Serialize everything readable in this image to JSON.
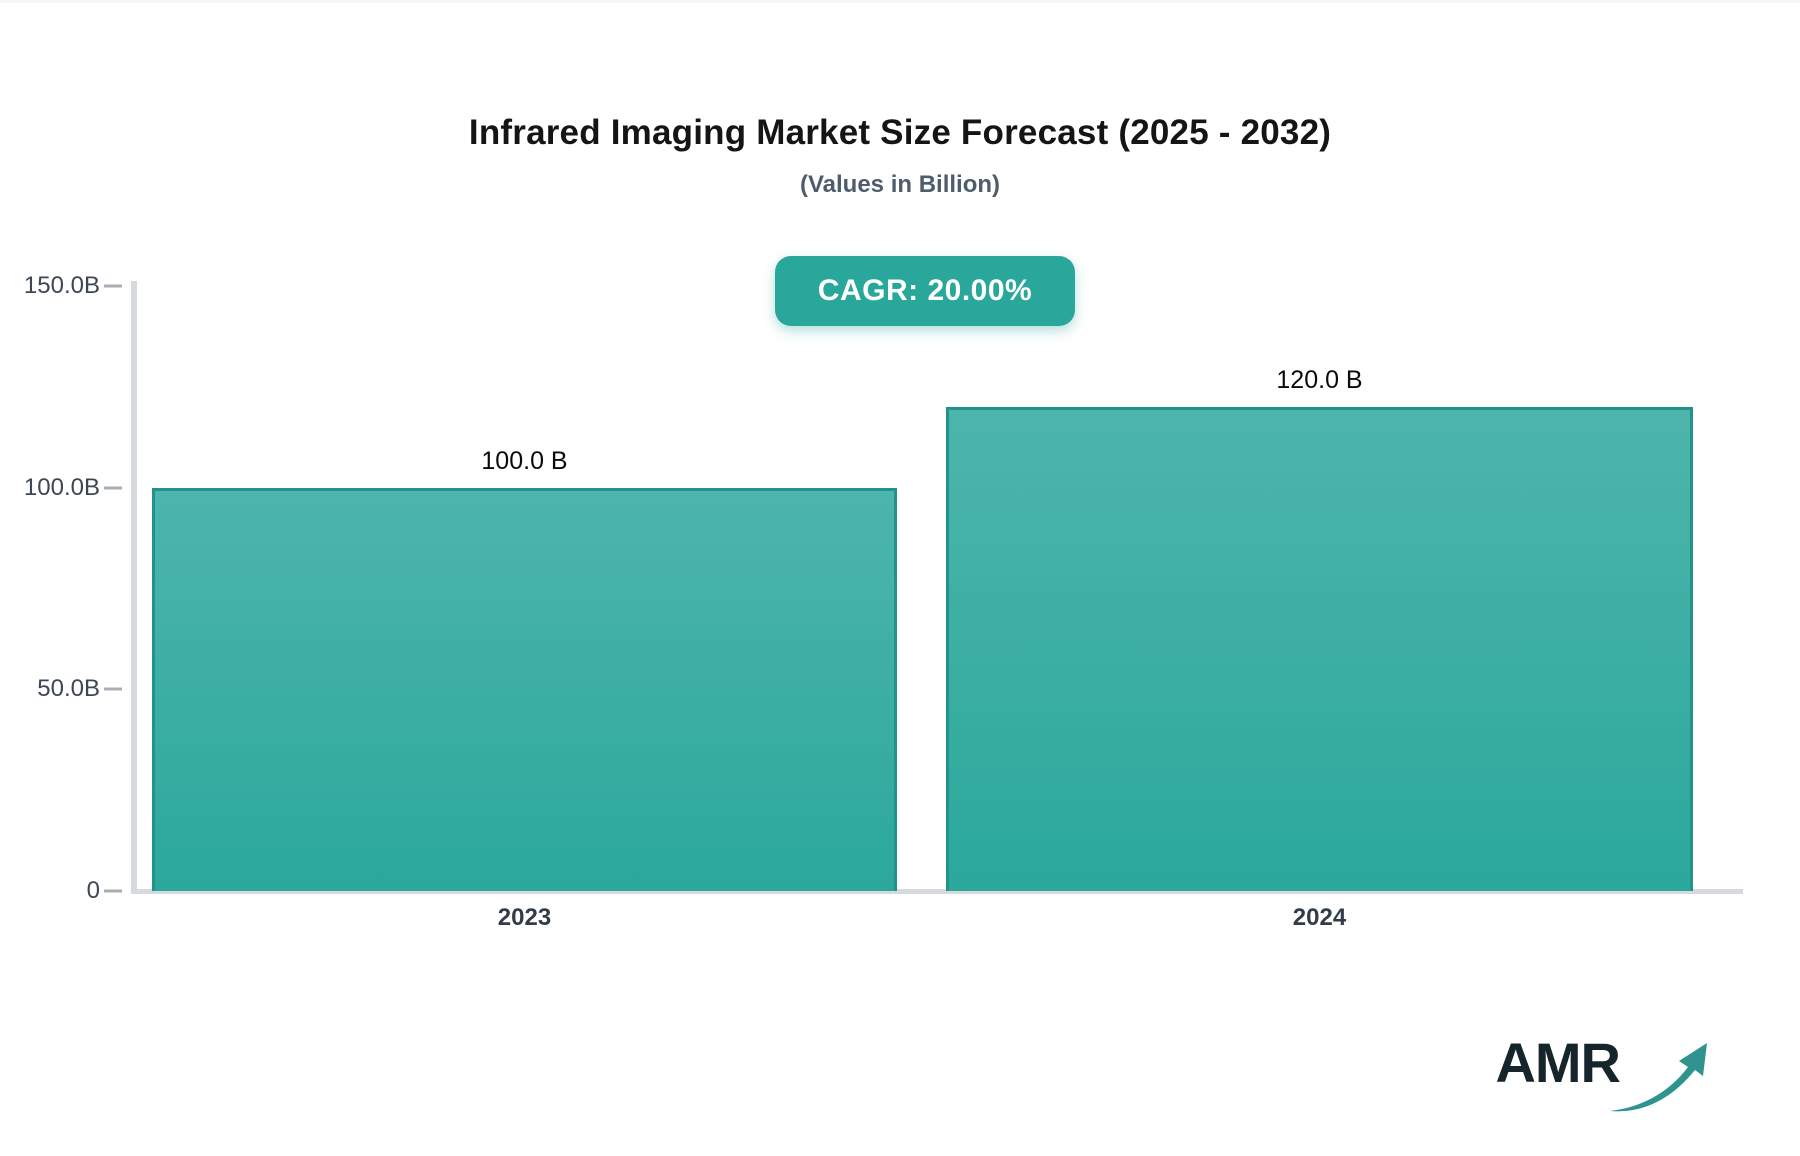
{
  "chart": {
    "title": "Infrared Imaging Market Size Forecast (2025 - 2032)",
    "subtitle": "(Values in Billion)",
    "cagr_badge": "CAGR: 20.00%"
  },
  "chart_data": {
    "type": "bar",
    "title": "Infrared Imaging Market Size Forecast (2025 - 2032)",
    "subtitle": "(Values in Billion)",
    "cagr_percent": "20.00%",
    "categories": [
      "2023",
      "2024"
    ],
    "values": [
      100.0,
      120.0
    ],
    "value_labels": [
      "100.0 B",
      "120.0 B"
    ],
    "unit": "Billion",
    "xlabel": "",
    "ylabel": "",
    "ylim": [
      0,
      150
    ],
    "yticks": [
      {
        "label": "150.0B",
        "value": 150
      },
      {
        "label": "100.0B",
        "value": 100
      },
      {
        "label": "50.0B",
        "value": 50
      },
      {
        "label": "0",
        "value": 0
      }
    ],
    "grid": false,
    "legend": false,
    "bar_color_top": "#4db5ab",
    "bar_color_bottom": "#2ba89c",
    "bar_border_color": "#21938a"
  },
  "colors": {
    "accent_teal": "#2aa79b",
    "axis_gray": "#d6d9dd",
    "title_color": "#151515",
    "subtitle_color": "#4d5d6c"
  },
  "logo": {
    "text": "AMR",
    "arrow_icon": "growth-arrow-icon",
    "arrow_color": "#2f9390"
  }
}
